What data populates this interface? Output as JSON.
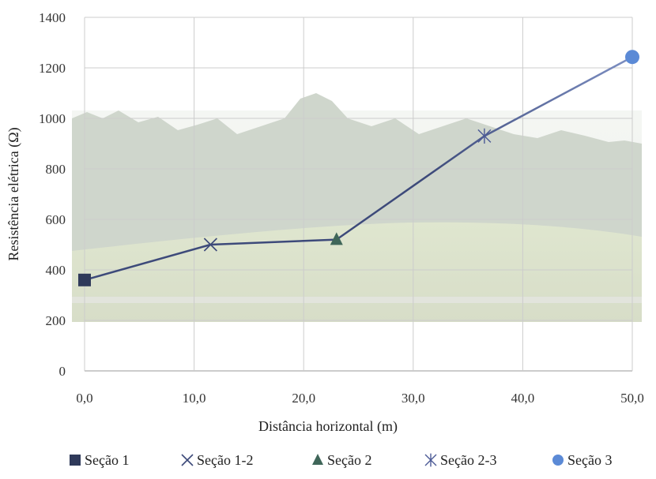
{
  "chart_data": {
    "type": "line",
    "xlabel": "Distância horizontal (m)",
    "ylabel": "Resistência elétrica (Ω)",
    "xlim": [
      0,
      50
    ],
    "ylim": [
      0,
      1400
    ],
    "x_ticks": [
      "0,0",
      "10,0",
      "20,0",
      "30,0",
      "40,0",
      "50,0"
    ],
    "y_ticks": [
      "0",
      "200",
      "400",
      "600",
      "800",
      "1000",
      "1200",
      "1400"
    ],
    "grid": true,
    "background": "photograph of a grassy hillside with araucaria trees, faded",
    "line_colors": [
      "#3d4a7a",
      "#7d8fc2"
    ],
    "legend_position": "bottom",
    "series": [
      {
        "name": "Seção 1",
        "x": 0.0,
        "y": 360,
        "marker": "square",
        "color": "#2f3a5a"
      },
      {
        "name": "Seção 1-2",
        "x": 11.5,
        "y": 500,
        "marker": "x",
        "color": "#3d4a7a"
      },
      {
        "name": "Seção 2",
        "x": 23.0,
        "y": 520,
        "marker": "triangle",
        "color": "#3f6659"
      },
      {
        "name": "Seção 2-3",
        "x": 36.5,
        "y": 930,
        "marker": "asterisk",
        "color": "#4c5a96"
      },
      {
        "name": "Seção 3",
        "x": 50.0,
        "y": 1243,
        "marker": "circle",
        "color": "#5b8ad6"
      }
    ]
  }
}
